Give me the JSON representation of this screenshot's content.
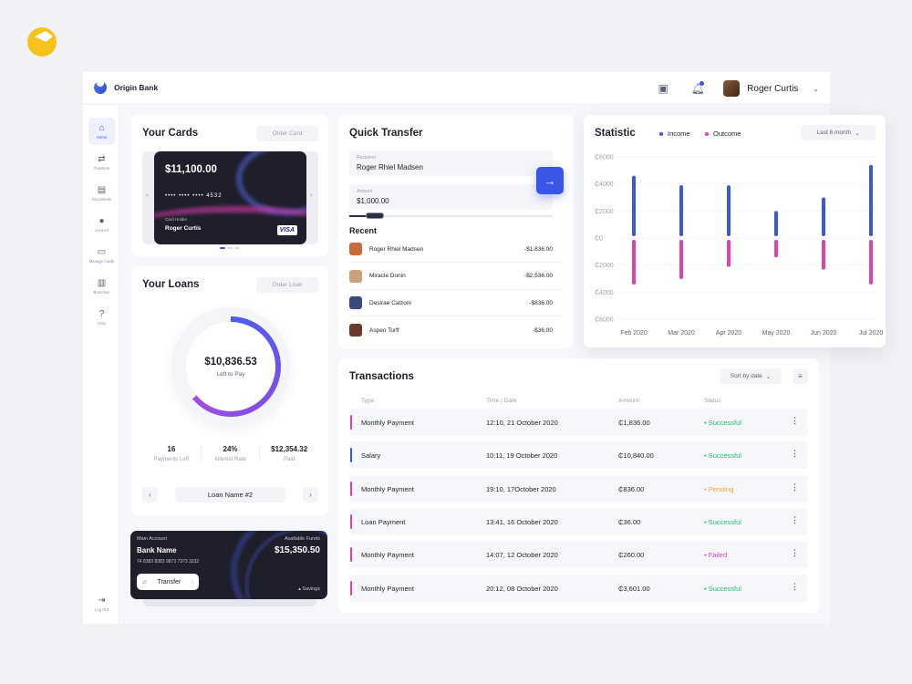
{
  "app": {
    "name": "Origin Bank"
  },
  "user": {
    "name": "Roger Curtis"
  },
  "sidebar": {
    "items": [
      {
        "label": "Home",
        "icon": "home-icon",
        "glyph": "⌂"
      },
      {
        "label": "Transfers",
        "icon": "transfer-icon",
        "glyph": "⇄"
      },
      {
        "label": "Documents",
        "icon": "document-icon",
        "glyph": "▤"
      },
      {
        "label": "Account",
        "icon": "user-icon",
        "glyph": "●"
      },
      {
        "label": "Manage Cards",
        "icon": "card-icon",
        "glyph": "▭"
      },
      {
        "label": "Branches",
        "icon": "building-icon",
        "glyph": "▥"
      },
      {
        "label": "Help",
        "icon": "help-icon",
        "glyph": "?"
      }
    ],
    "logout": {
      "label": "Log Out",
      "glyph": "⇥"
    }
  },
  "cards": {
    "title": "Your Cards",
    "order_label": "Order Card",
    "amount": "$11,100.00",
    "number_mask": "•••• •••• •••• ",
    "last4": "4532",
    "holder_label": "Card Holder",
    "holder": "Roger Curtis",
    "brand": "VISA"
  },
  "loans": {
    "title": "Your Loans",
    "order_label": "Order Loan",
    "left_amount": "$10,836.53",
    "left_label": "Left to Pay",
    "progress": 0.64,
    "stats": [
      {
        "value": "16",
        "label": "Payments Left"
      },
      {
        "value": "24%",
        "label": "Interest Rate"
      },
      {
        "value": "$12,354.32",
        "label": "Paid"
      }
    ],
    "loan_name": "Loan Name #2"
  },
  "main_account": {
    "label": "Main Account",
    "bank_name": "Bank Name",
    "number": "74 8383 8383 9873 7373 3232",
    "funds_label": "Available Funds",
    "funds": "$15,350.50",
    "transfer_label": "Transfer",
    "savings_label": "Savings"
  },
  "quick_transfer": {
    "title": "Quick Transfer",
    "recipient_label": "Recipient",
    "recipient_value": "Roger Rhiel Madsen",
    "amount_label": "Amount",
    "amount_value": "$1,000.00",
    "recent_title": "Recent",
    "recent": [
      {
        "name": "Roger Rhiel Madsen",
        "amount": "-$1,836.00",
        "color": "#c86a3a"
      },
      {
        "name": "Miracle Donin",
        "amount": "-$2,536.00",
        "color": "#c9a27a"
      },
      {
        "name": "Desirae Calzoni",
        "amount": "-$836.00",
        "color": "#3a4a7c"
      },
      {
        "name": "Aspen Torff",
        "amount": "-$36.00",
        "color": "#6b3a2a"
      }
    ]
  },
  "statistic": {
    "title": "Statistic",
    "legend_income": "Income",
    "legend_outcome": "Outcome",
    "period_label": "Last 6 month",
    "income_color": "#3b55e6",
    "outcome_color": "#e23fb0"
  },
  "chart_data": {
    "type": "bar",
    "categories": [
      "Feb 2020",
      "Mar 2020",
      "Apr 2020",
      "May 2020",
      "Jun 2020",
      "Jul 2020"
    ],
    "series": [
      {
        "name": "Income",
        "values": [
          4600,
          3900,
          3900,
          2000,
          3000,
          5400
        ]
      },
      {
        "name": "Outcome",
        "values": [
          -3300,
          -2900,
          -2000,
          -1300,
          -2200,
          -3300
        ]
      }
    ],
    "ylim": [
      -6000,
      6000
    ],
    "y_ticks": [
      "₵6000",
      "₵4000",
      "₵2000",
      "₵0",
      "₵2000",
      "₵4000",
      "₵6000"
    ],
    "grid": true,
    "legend_placement": "top"
  },
  "transactions": {
    "title": "Transactions",
    "sort_label": "Sort by date",
    "columns": [
      "Type",
      "Time / Date",
      "Amount",
      "Status"
    ],
    "rows": [
      {
        "type": "Monthly Payment",
        "date": "12:10, 21 October  2020",
        "amount": "₵1,836.00",
        "status": "• Successful",
        "status_color": "#2bb673",
        "bar_color": "#e23fb0"
      },
      {
        "type": "Salary",
        "date": "10:11, 19 October  2020",
        "amount": "₵10,840.00",
        "status": "• Successful",
        "status_color": "#2bb673",
        "bar_color": "#3b55e6"
      },
      {
        "type": "Monthly Payment",
        "date": "19:10, 17October  2020",
        "amount": "₵836.00",
        "status": "• Pending",
        "status_color": "#f5a442",
        "bar_color": "#e23fb0"
      },
      {
        "type": "Loan Payment",
        "date": "13:41, 16 October  2020",
        "amount": "₵36.00",
        "status": "• Successful",
        "status_color": "#2bb673",
        "bar_color": "#e23fb0"
      },
      {
        "type": "Monthly Payment",
        "date": "14:07, 12 October  2020",
        "amount": "₵260.00",
        "status": "• Failed",
        "status_color": "#e23fb0",
        "bar_color": "#e23fb0"
      },
      {
        "type": "Monthly Payment",
        "date": "20:12, 08 October  2020",
        "amount": "₵3,601.00",
        "status": "• Successful",
        "status_color": "#2bb673",
        "bar_color": "#e23fb0"
      }
    ]
  }
}
